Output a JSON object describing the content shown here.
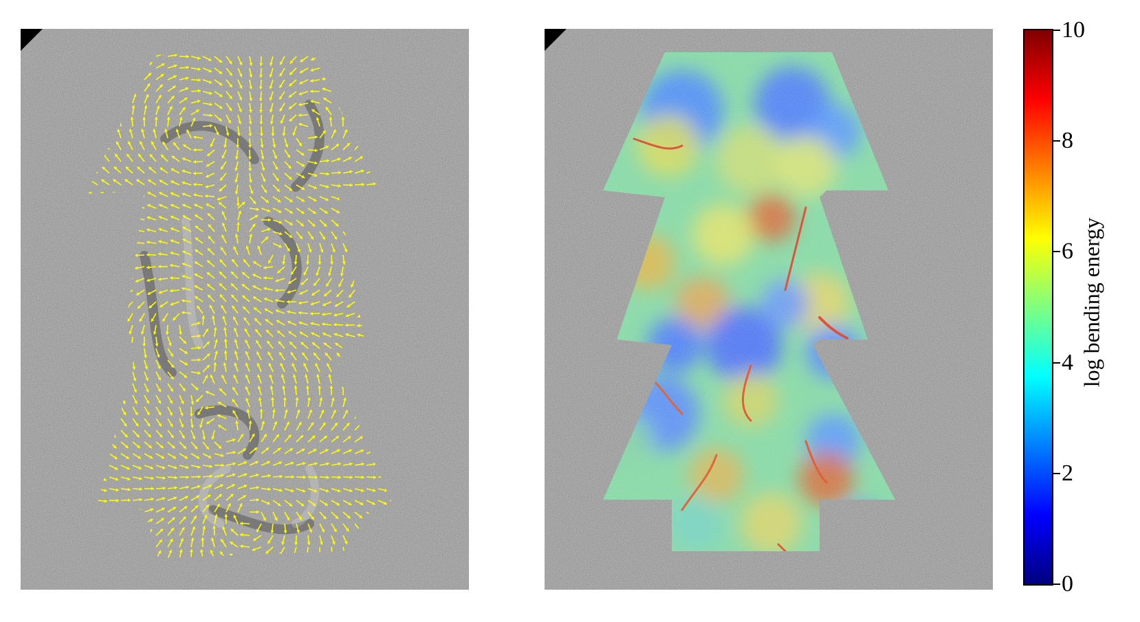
{
  "chart_data": [
    {
      "type": "image",
      "panel": "left",
      "description_kind": "grayscale micrograph with yellow orientation vector field overlay",
      "overlay_color": "#ffff00"
    },
    {
      "type": "heatmap",
      "panel": "right",
      "colormap": "jet",
      "colorbar": {
        "label": "log bending energy",
        "min": 0,
        "max": 10,
        "ticks": [
          0,
          2,
          4,
          6,
          8,
          10
        ],
        "tick_labels": [
          "0",
          "2",
          "4",
          "6",
          "8",
          "10"
        ],
        "colors": [
          "#00007f",
          "#0000ff",
          "#007fff",
          "#00ffff",
          "#7fff7f",
          "#ffff00",
          "#ff7f00",
          "#ff0000",
          "#7f0000"
        ]
      }
    }
  ]
}
